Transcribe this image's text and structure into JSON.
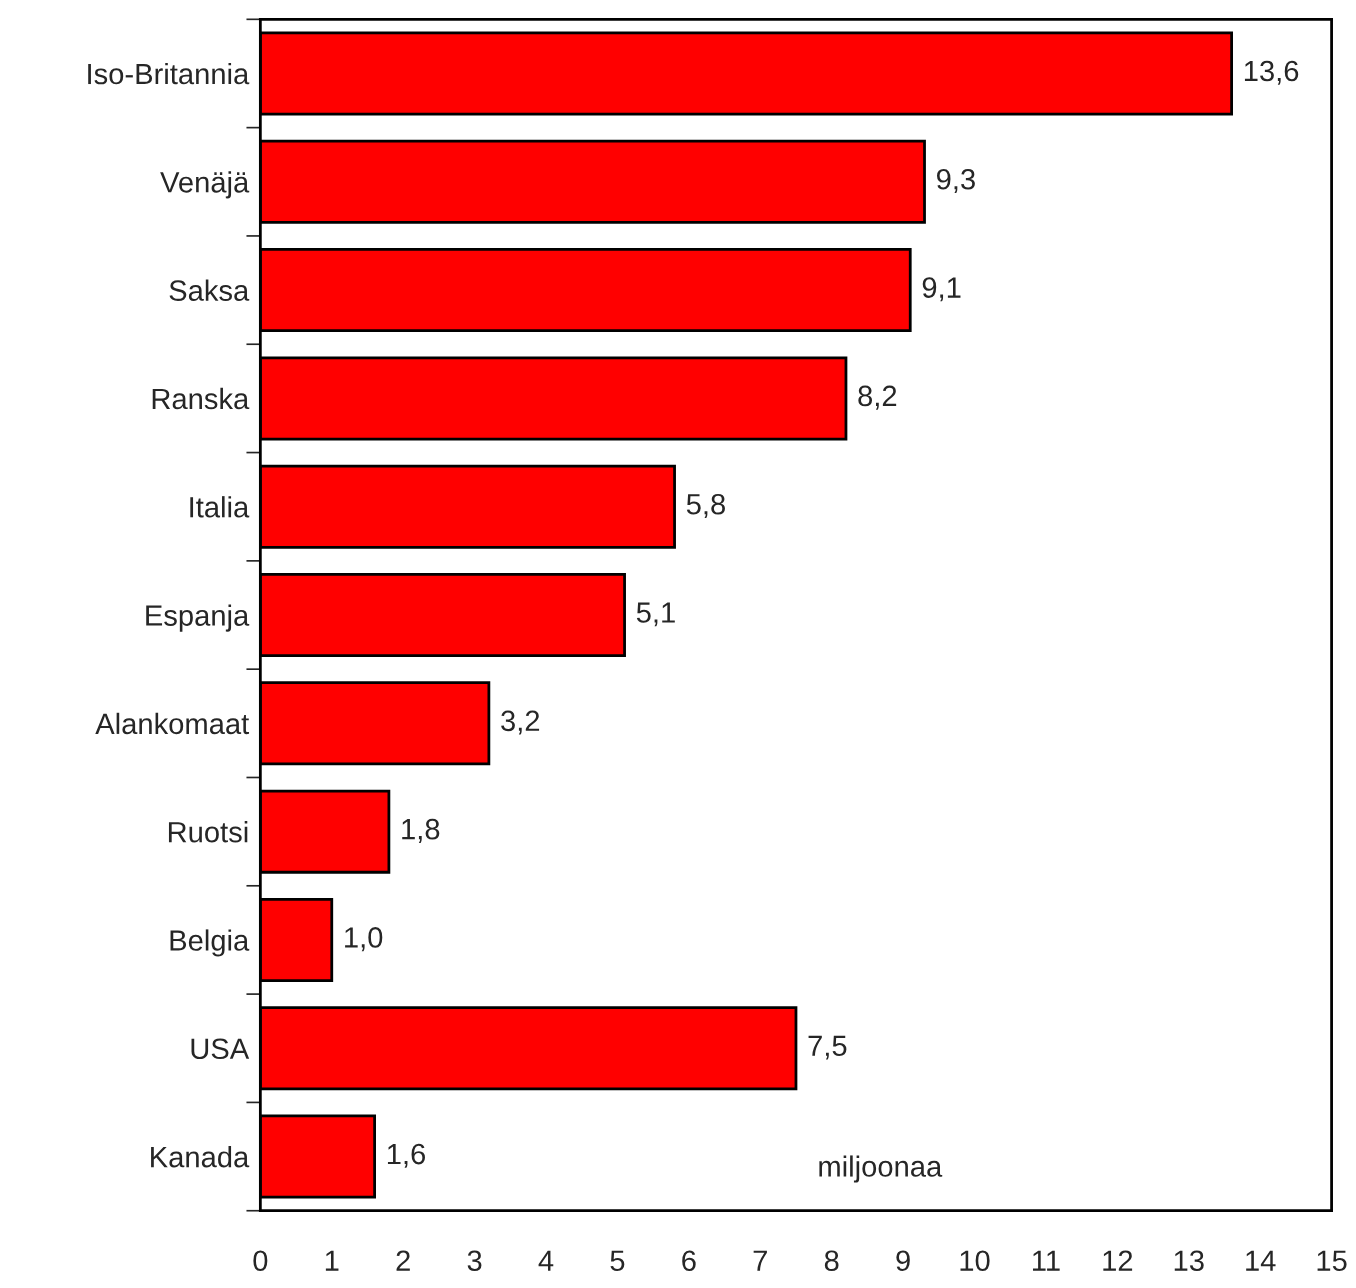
{
  "chart_data": {
    "type": "bar",
    "orientation": "horizontal",
    "categories": [
      "Iso-Britannia",
      "Venäjä",
      "Saksa",
      "Ranska",
      "Italia",
      "Espanja",
      "Alankomaat",
      "Ruotsi",
      "Belgia",
      "USA",
      "Kanada"
    ],
    "values": [
      13.6,
      9.3,
      9.1,
      8.2,
      5.8,
      5.1,
      3.2,
      1.8,
      1.0,
      7.5,
      1.6
    ],
    "value_labels": [
      "13,6",
      "9,3",
      "9,1",
      "8,2",
      "5,8",
      "5,1",
      "3,2",
      "1,8",
      "1,0",
      "7,5",
      "1,6"
    ],
    "color": "#ff0000",
    "xlim": [
      0,
      15
    ],
    "xticks": [
      0,
      1,
      2,
      3,
      4,
      5,
      6,
      7,
      8,
      9,
      10,
      11,
      12,
      13,
      14,
      15
    ],
    "annotations": [
      "miljoonaa"
    ],
    "grid": false,
    "legend": false
  }
}
